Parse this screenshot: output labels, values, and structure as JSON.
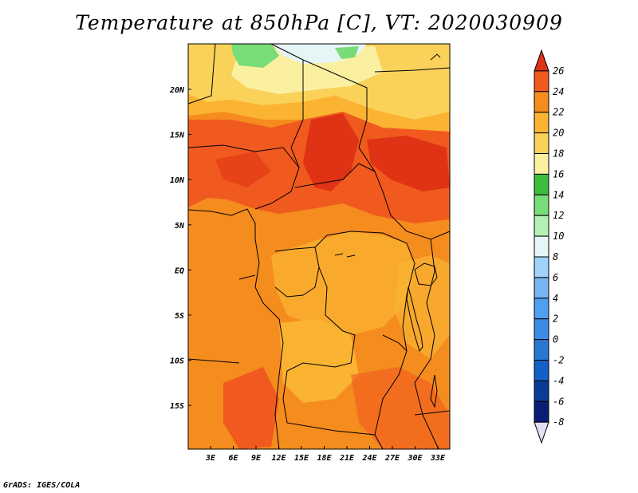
{
  "title": "Temperature at 850hPa [C], VT: 2020030909",
  "credit": "GrADS: IGES/COLA",
  "map": {
    "lat_labels": [
      "20N",
      "15N",
      "10N",
      "5N",
      "EQ",
      "5S",
      "10S",
      "15S"
    ],
    "lon_labels": [
      "3E",
      "6E",
      "9E",
      "12E",
      "15E",
      "18E",
      "21E",
      "24E",
      "27E",
      "30E",
      "33E"
    ]
  },
  "colorbar": {
    "levels": [
      "26",
      "24",
      "22",
      "20",
      "18",
      "16",
      "14",
      "12",
      "10",
      "8",
      "6",
      "4",
      "2",
      "0",
      "-2",
      "-4",
      "-6",
      "-8"
    ],
    "colors": [
      "#e03214",
      "#f05a1e",
      "#f58c1e",
      "#fab432",
      "#fad25a",
      "#faf0a0",
      "#3cbe3c",
      "#78dc78",
      "#b4f0b4",
      "#e6f5f5",
      "#a0d2fa",
      "#78b4f0",
      "#50a0f0",
      "#3c8ce6",
      "#2878d2",
      "#1460c8",
      "#0a3c96",
      "#0a1e78",
      "#e1e1f5"
    ]
  }
}
